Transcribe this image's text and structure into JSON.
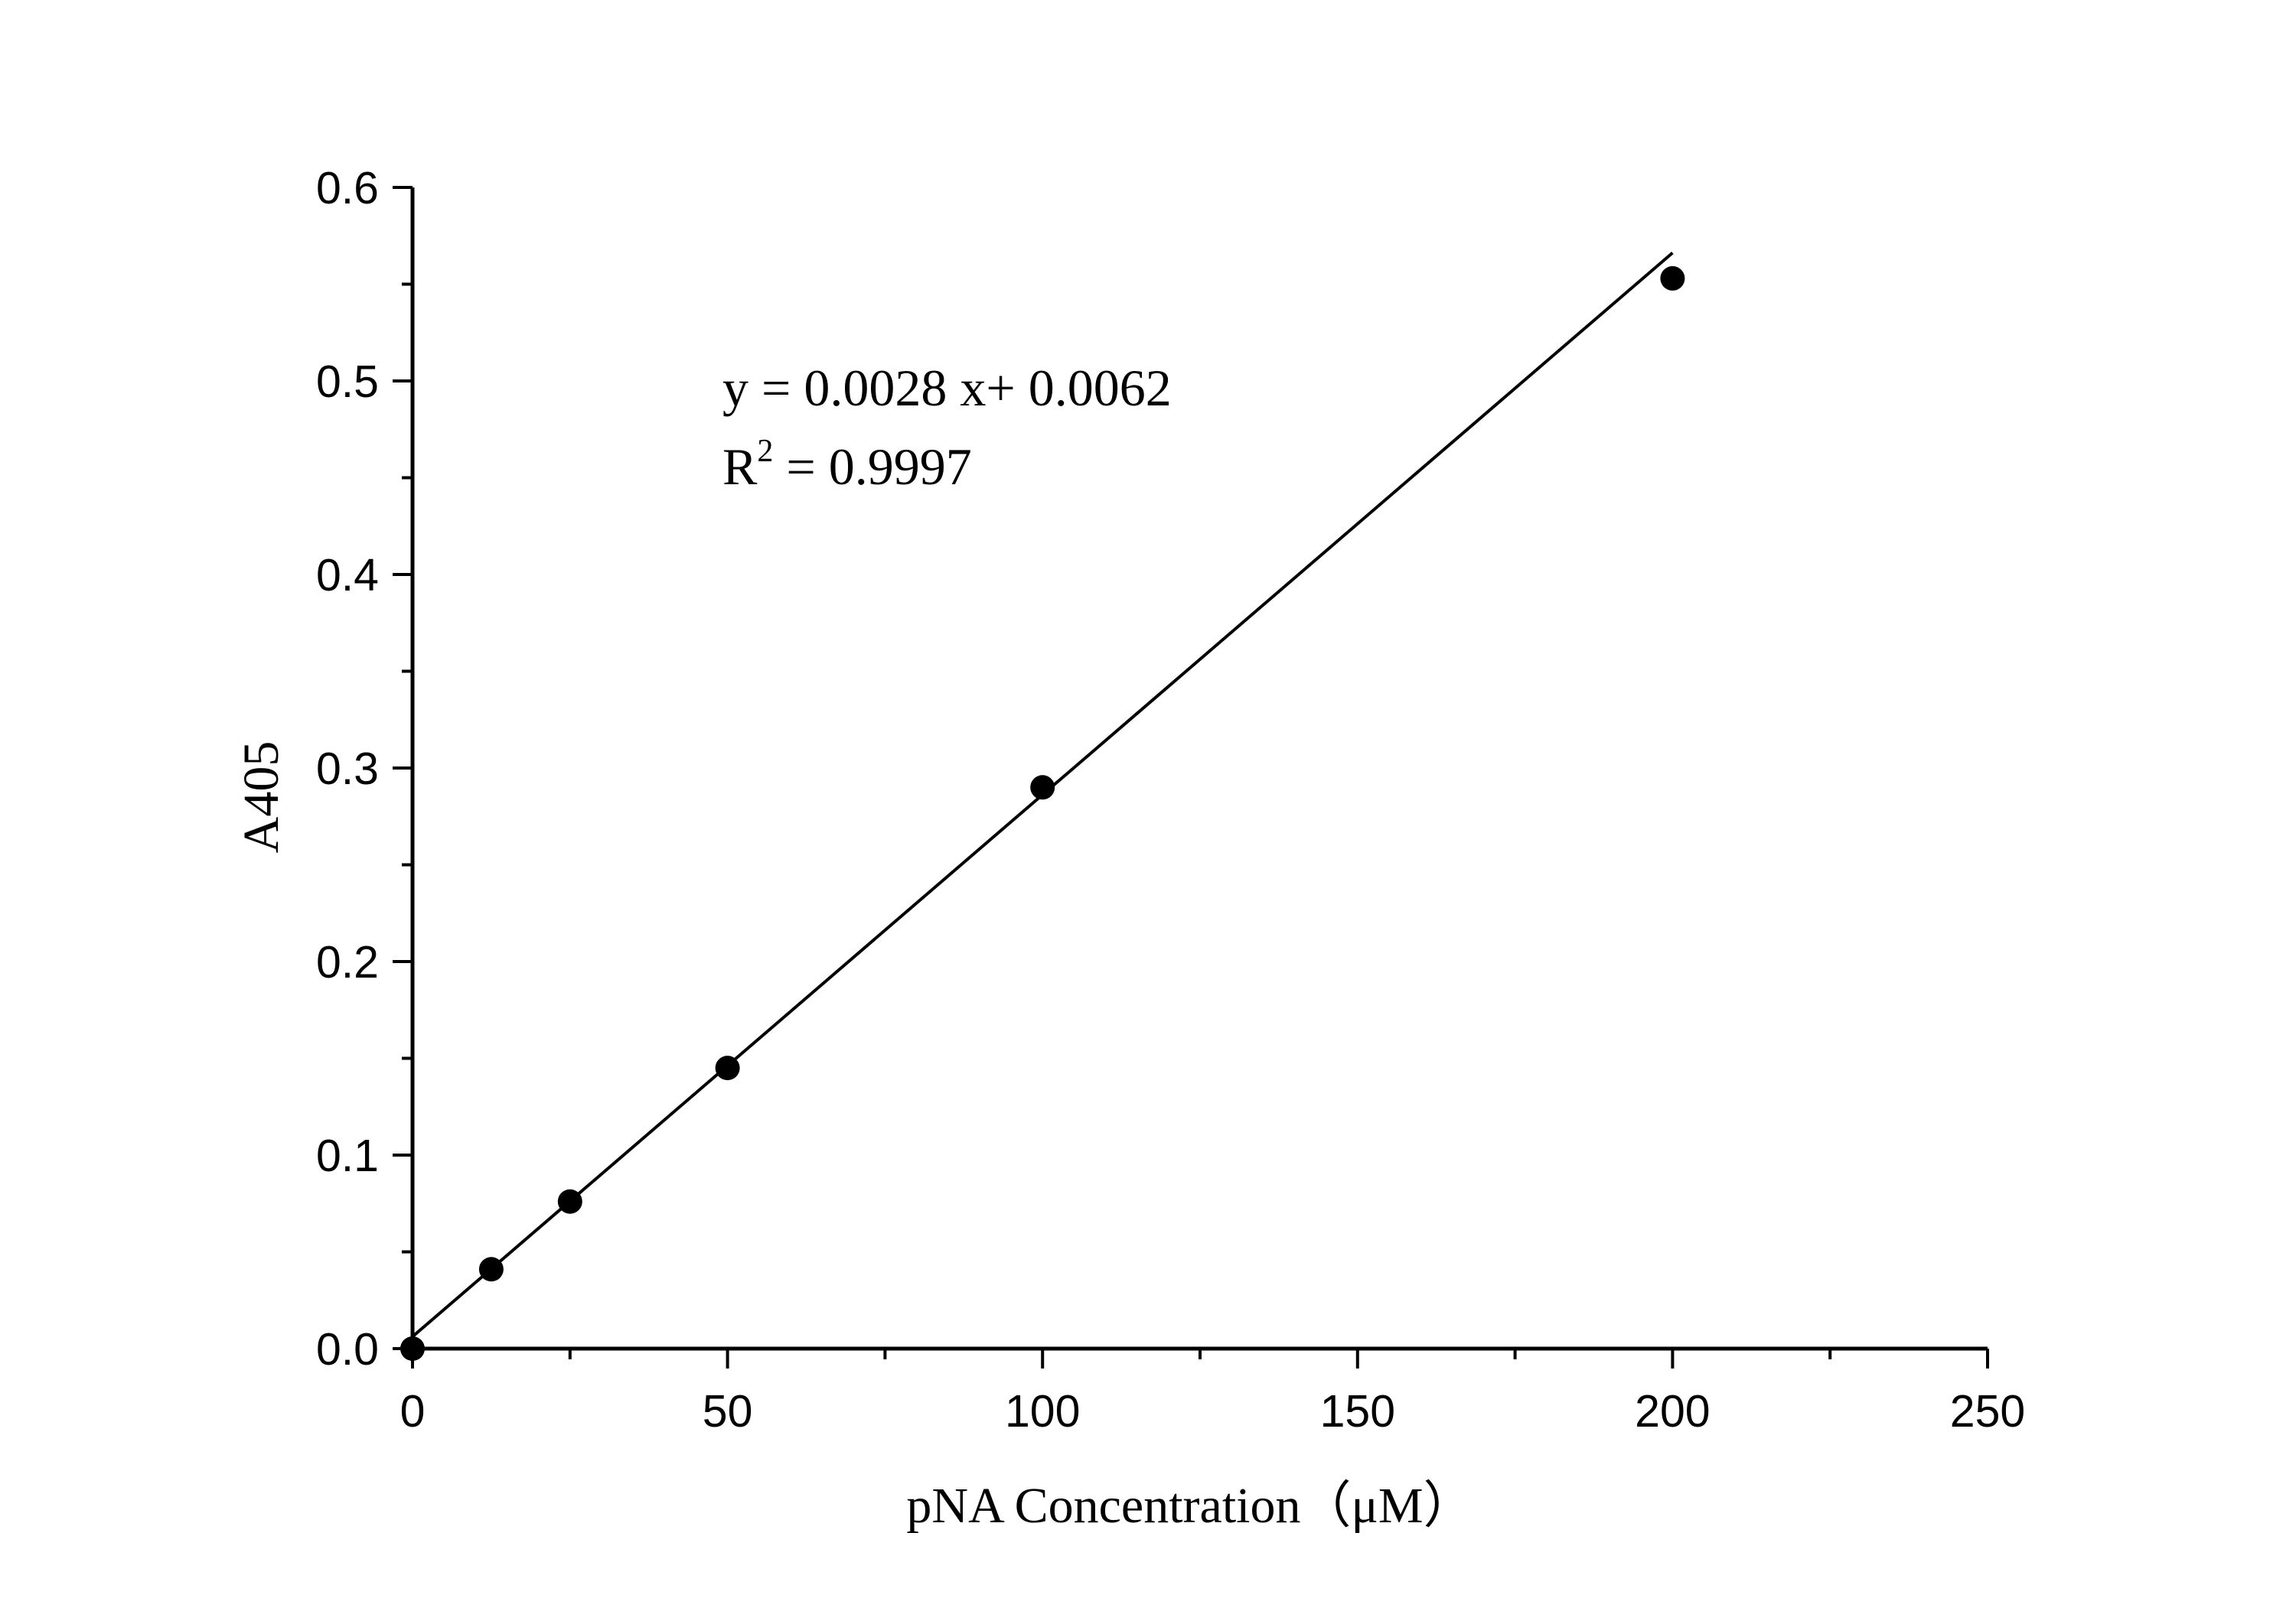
{
  "chart_data": {
    "type": "scatter",
    "title": "",
    "xlabel": "pNA Concentration（μM）",
    "ylabel": "A405",
    "xlim": [
      0,
      250
    ],
    "ylim": [
      0,
      0.6
    ],
    "xticks": [
      "0",
      "50",
      "100",
      "150",
      "200",
      "250"
    ],
    "yticks": [
      "0.0",
      "0.1",
      "0.2",
      "0.3",
      "0.4",
      "0.5",
      "0.6"
    ],
    "grid": false,
    "legend": "none",
    "series": [
      {
        "points": [
          {
            "x": 0,
            "y": 0.0
          },
          {
            "x": 12.5,
            "y": 0.041
          },
          {
            "x": 25,
            "y": 0.076
          },
          {
            "x": 50,
            "y": 0.145
          },
          {
            "x": 100,
            "y": 0.29
          },
          {
            "x": 200,
            "y": 0.553
          }
        ]
      }
    ],
    "fit_line": {
      "slope": 0.0028,
      "intercept": 0.0062,
      "x_range": [
        0,
        200
      ]
    },
    "annotations": {
      "equation": "y = 0.0028 x+ 0.0062",
      "r2_prefix": "R",
      "r2_sup": "2",
      "r2_value": " = 0.9997"
    },
    "colors": {
      "marker": "#000000",
      "line": "#000000",
      "axis": "#000000"
    }
  }
}
